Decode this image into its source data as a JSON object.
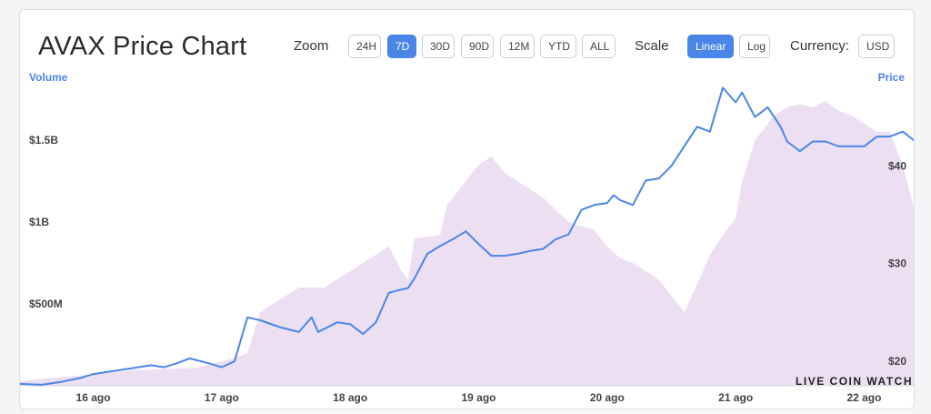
{
  "header": {
    "title": "AVAX Price Chart",
    "zoom_label": "Zoom",
    "zoom_options": [
      "24H",
      "7D",
      "30D",
      "90D",
      "12M",
      "YTD",
      "ALL"
    ],
    "zoom_selected": "7D",
    "scale_label": "Scale",
    "scale_options": [
      "Linear",
      "Log"
    ],
    "scale_selected": "Linear",
    "currency_label": "Currency:",
    "currency_value": "USD"
  },
  "watermark": "LIVE COIN WATCH",
  "colors": {
    "price_line": "#4a86e8",
    "volume_area": "#ecdff2",
    "active_button": "#4a86e8"
  },
  "chart_data": {
    "type": "line",
    "ylabel_left": "Volume",
    "ylabel_right": "Price",
    "x_ticks": [
      "16 ago",
      "17 ago",
      "18 ago",
      "19 ago",
      "20 ago",
      "21 ago",
      "22 ago"
    ],
    "y_left_ticks": [
      {
        "label": "$500M",
        "value": 500000000
      },
      {
        "label": "$1B",
        "value": 1000000000
      },
      {
        "label": "$1.5B",
        "value": 1500000000
      }
    ],
    "y_right_ticks": [
      {
        "label": "$20",
        "value": 20
      },
      {
        "label": "$30",
        "value": 30
      },
      {
        "label": "$40",
        "value": 40
      }
    ],
    "x_range": [
      15.43,
      22.4
    ],
    "y_left_range": [
      0,
      1850000000
    ],
    "y_right_range": [
      17.5,
      48.5
    ],
    "series": [
      {
        "name": "Price",
        "axis": "right",
        "x": [
          15.43,
          15.6,
          15.75,
          15.9,
          16.0,
          16.15,
          16.3,
          16.45,
          16.55,
          16.65,
          16.75,
          16.9,
          17.0,
          17.1,
          17.2,
          17.3,
          17.45,
          17.6,
          17.7,
          17.75,
          17.9,
          18.0,
          18.1,
          18.2,
          18.3,
          18.35,
          18.45,
          18.5,
          18.6,
          18.7,
          18.8,
          18.9,
          19.0,
          19.1,
          19.2,
          19.3,
          19.4,
          19.5,
          19.6,
          19.7,
          19.8,
          19.9,
          20.0,
          20.05,
          20.1,
          20.2,
          20.3,
          20.4,
          20.5,
          20.6,
          20.7,
          20.8,
          20.9,
          21.0,
          21.05,
          21.15,
          21.25,
          21.35,
          21.4,
          21.5,
          21.6,
          21.7,
          21.8,
          21.9,
          22.0,
          22.1,
          22.2,
          22.3,
          22.4
        ],
        "y": [
          17.7,
          17.6,
          17.9,
          18.3,
          18.7,
          19.0,
          19.3,
          19.6,
          19.4,
          19.8,
          20.3,
          19.8,
          19.4,
          20.0,
          24.5,
          24.2,
          23.5,
          23.0,
          24.5,
          23.0,
          24.0,
          23.8,
          22.8,
          24.0,
          27.0,
          27.2,
          27.5,
          28.5,
          31.0,
          31.8,
          32.5,
          33.3,
          32.0,
          30.8,
          30.8,
          31.0,
          31.3,
          31.5,
          32.5,
          33.0,
          35.5,
          36.0,
          36.2,
          37.0,
          36.5,
          36.0,
          38.5,
          38.7,
          40.0,
          42.0,
          44.0,
          43.5,
          48.0,
          46.5,
          47.5,
          45.0,
          46.0,
          44.0,
          42.5,
          41.5,
          42.5,
          42.5,
          42.0,
          42.0,
          42.0,
          43.0,
          43.0,
          43.5,
          42.5
        ]
      },
      {
        "name": "Volume",
        "axis": "left",
        "x": [
          15.43,
          15.7,
          16.0,
          16.3,
          16.5,
          16.8,
          17.0,
          17.1,
          17.2,
          17.3,
          17.6,
          17.8,
          18.0,
          18.1,
          18.2,
          18.3,
          18.4,
          18.45,
          18.5,
          18.7,
          18.75,
          18.9,
          19.0,
          19.1,
          19.2,
          19.3,
          19.5,
          19.7,
          19.9,
          20.0,
          20.1,
          20.2,
          20.3,
          20.4,
          20.5,
          20.6,
          20.7,
          20.8,
          20.9,
          21.0,
          21.05,
          21.15,
          21.3,
          21.4,
          21.5,
          21.6,
          21.7,
          21.8,
          21.9,
          22.0,
          22.1,
          22.2,
          22.3,
          22.4
        ],
        "y": [
          30000000,
          50000000,
          70000000,
          95000000,
          100000000,
          110000000,
          150000000,
          170000000,
          200000000,
          450000000,
          600000000,
          600000000,
          700000000,
          750000000,
          800000000,
          850000000,
          700000000,
          650000000,
          900000000,
          920000000,
          1100000000,
          1250000000,
          1350000000,
          1400000000,
          1300000000,
          1250000000,
          1150000000,
          1000000000,
          950000000,
          850000000,
          780000000,
          750000000,
          700000000,
          650000000,
          550000000,
          450000000,
          620000000,
          800000000,
          920000000,
          1020000000,
          1250000000,
          1500000000,
          1650000000,
          1700000000,
          1720000000,
          1700000000,
          1740000000,
          1680000000,
          1650000000,
          1600000000,
          1550000000,
          1550000000,
          1350000000,
          1050000000
        ]
      }
    ]
  }
}
